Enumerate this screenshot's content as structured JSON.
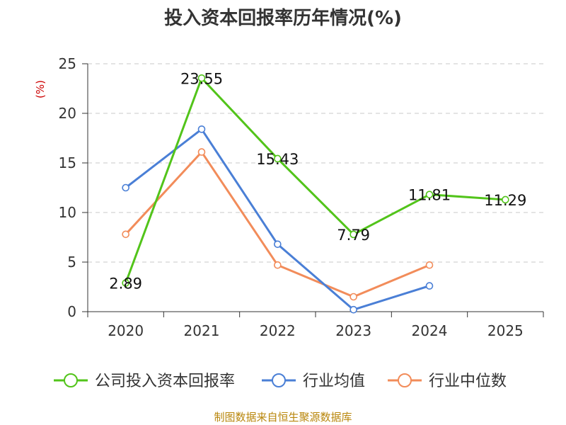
{
  "chart_data": {
    "type": "line",
    "title": "投入资本回报率历年情况(%)",
    "ylabel": "(%)",
    "xlabel": "",
    "categories": [
      "2020",
      "2021",
      "2022",
      "2023",
      "2024",
      "2025"
    ],
    "ylim": [
      0,
      25
    ],
    "yticks": [
      0,
      5,
      10,
      15,
      20,
      25
    ],
    "grid": true,
    "legend_position": "bottom",
    "series": [
      {
        "name": "公司投入资本回报率",
        "color": "#52c41a",
        "values": [
          2.89,
          23.55,
          15.43,
          7.79,
          11.81,
          11.29
        ],
        "labels": [
          "2.89",
          "23.55",
          "15.43",
          "7.79",
          "11.81",
          "11.29"
        ]
      },
      {
        "name": "行业均值",
        "color": "#4a7fd6",
        "values": [
          12.5,
          18.4,
          6.8,
          0.2,
          2.6,
          null
        ]
      },
      {
        "name": "行业中位数",
        "color": "#f28c5a",
        "values": [
          7.8,
          16.1,
          4.7,
          1.5,
          4.7,
          null
        ]
      }
    ],
    "source": "制图数据来自恒生聚源数据库"
  }
}
